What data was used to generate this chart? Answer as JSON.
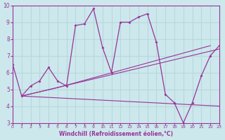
{
  "xlabel": "Windchill (Refroidissement éolien,°C)",
  "xlim": [
    0,
    23
  ],
  "ylim": [
    3,
    10
  ],
  "xticks": [
    0,
    1,
    2,
    3,
    4,
    5,
    6,
    7,
    8,
    9,
    10,
    11,
    12,
    13,
    14,
    15,
    16,
    17,
    18,
    19,
    20,
    21,
    22,
    23
  ],
  "yticks": [
    3,
    4,
    5,
    6,
    7,
    8,
    9,
    10
  ],
  "background_color": "#cce8ec",
  "line_color": "#993399",
  "grid_color": "#b8d8dc",
  "main_line": {
    "x": [
      0,
      1,
      2,
      3,
      4,
      5,
      6,
      7,
      8,
      9,
      10,
      11,
      12,
      13,
      14,
      15,
      16,
      17,
      18,
      19,
      20,
      21,
      22,
      23
    ],
    "y": [
      6.5,
      4.6,
      5.2,
      5.5,
      6.3,
      5.5,
      5.2,
      8.8,
      8.9,
      9.8,
      7.5,
      6.0,
      9.0,
      9.0,
      9.3,
      9.5,
      7.8,
      4.7,
      4.2,
      3.0,
      4.2,
      5.8,
      7.0,
      7.6
    ]
  },
  "trend_lines": [
    {
      "x": [
        1,
        5,
        22
      ],
      "y": [
        4.6,
        5.1,
        7.6
      ]
    },
    {
      "x": [
        1,
        23
      ],
      "y": [
        4.6,
        7.4
      ]
    },
    {
      "x": [
        1,
        23
      ],
      "y": [
        4.6,
        4.0
      ]
    }
  ]
}
